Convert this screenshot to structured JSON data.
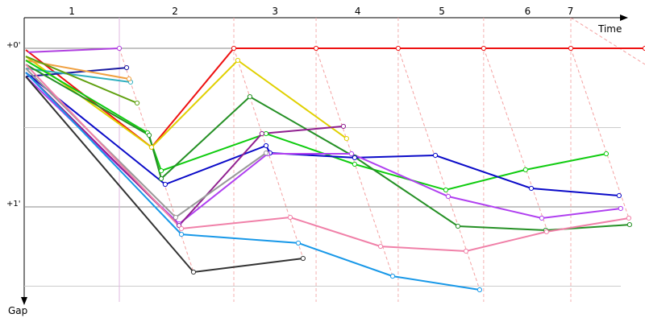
{
  "chart_data": {
    "type": "line",
    "x_label": "Time",
    "y_label": "Gap",
    "xlim": [
      0,
      3.909
    ],
    "ylim": [
      -0.193,
      1.599
    ],
    "y_inverted": true,
    "xticks": [
      {
        "value": 0.3,
        "label": "1"
      },
      {
        "value": 0.95,
        "label": "2"
      },
      {
        "value": 1.58,
        "label": "3"
      },
      {
        "value": 2.1,
        "label": "4"
      },
      {
        "value": 2.63,
        "label": "5"
      },
      {
        "value": 3.17,
        "label": "6"
      },
      {
        "value": 3.44,
        "label": "7"
      }
    ],
    "yticks": [
      {
        "value": 0,
        "label": "+0'"
      },
      {
        "value": 1,
        "label": "+1'"
      }
    ],
    "xgrid": [
      0.599,
      1.32,
      1.838,
      2.355,
      2.893,
      3.442
    ],
    "ygrid": [
      0,
      0.5,
      1,
      1.5
    ],
    "series": [
      {
        "color": "#ee1111",
        "x": [
          0.01,
          0.802,
          1.32,
          1.838,
          2.355,
          2.893,
          3.442,
          3.909
        ],
        "values": [
          0.01,
          0.624,
          0,
          0,
          0,
          0,
          0,
          0
        ]
      },
      {
        "color": "#e0d000",
        "x": [
          0.01,
          0.802,
          1.345,
          2.03
        ],
        "values": [
          0.051,
          0.624,
          0.076,
          0.569
        ]
      },
      {
        "color": "#b040e0",
        "x": [
          0.025,
          0.599
        ],
        "values": [
          0.025,
          0
        ]
      },
      {
        "color": "#1a1aa0",
        "x": [
          0.01,
          0.645
        ],
        "values": [
          0.178,
          0.122
        ]
      },
      {
        "color": "#30b0c0",
        "x": [
          0.01,
          0.67
        ],
        "values": [
          0.127,
          0.213
        ]
      },
      {
        "color": "#f0a040",
        "x": [
          0.01,
          0.66
        ],
        "values": [
          0.076,
          0.193
        ]
      },
      {
        "color": "#60a010",
        "x": [
          0.01,
          0.711
        ],
        "values": [
          0.051,
          0.345
        ]
      },
      {
        "color": "#10cc10",
        "x": [
          0.01,
          0.777,
          0.863,
          1.523,
          2.081,
          2.655,
          3.157,
          3.665
        ],
        "values": [
          0.076,
          0.533,
          0.772,
          0.538,
          0.731,
          0.893,
          0.766,
          0.665
        ]
      },
      {
        "color": "#259025",
        "x": [
          0.01,
          0.787,
          0.863,
          1.421,
          2.081,
          2.731,
          3.284,
          3.812
        ],
        "values": [
          0.102,
          0.548,
          0.822,
          0.305,
          0.685,
          1.122,
          1.147,
          1.112
        ]
      },
      {
        "color": "#0a0ac8",
        "x": [
          0.01,
          0.888,
          1.523,
          1.548,
          2.081,
          2.589,
          3.193,
          3.746
        ],
        "values": [
          0.152,
          0.858,
          0.614,
          0.66,
          0.69,
          0.675,
          0.883,
          0.929
        ]
      },
      {
        "color": "#b040f0",
        "x": [
          0.01,
          0.975,
          1.533,
          2.061,
          2.67,
          3.259,
          3.756
        ],
        "values": [
          0.178,
          1.107,
          0.665,
          0.665,
          0.934,
          1.071,
          1.01
        ]
      },
      {
        "color": "#902090",
        "x": [
          0.01,
          0.975,
          1.497,
          2.01
        ],
        "values": [
          0.152,
          1.117,
          0.538,
          0.492
        ]
      },
      {
        "color": "#999999",
        "x": [
          0.01,
          0.954,
          1.523
        ],
        "values": [
          0.127,
          1.066,
          0.66
        ]
      },
      {
        "color": "#f080a8",
        "x": [
          0.01,
          0.99,
          1.675,
          2.244,
          2.782,
          3.289,
          3.807
        ],
        "values": [
          0.102,
          1.137,
          1.066,
          1.249,
          1.279,
          1.157,
          1.071
        ]
      },
      {
        "color": "#1898e8",
        "x": [
          0.01,
          0.99,
          1.726,
          2.32,
          2.868
        ],
        "values": [
          0.152,
          1.173,
          1.228,
          1.437,
          1.523
        ]
      },
      {
        "color": "#333333",
        "x": [
          0.01,
          1.066,
          1.756
        ],
        "values": [
          0.178,
          1.411,
          1.325
        ]
      }
    ]
  }
}
